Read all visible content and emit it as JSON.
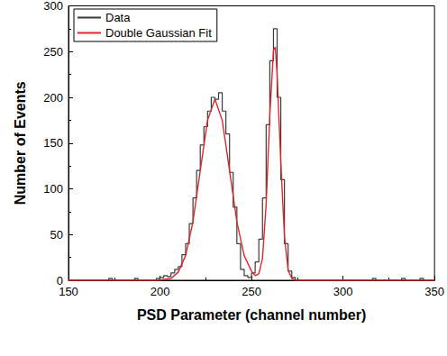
{
  "chart_data": {
    "type": "line",
    "x_label": "PSD Parameter (channel number)",
    "y_label": "Number of Events",
    "xlim": [
      150,
      350
    ],
    "xticks": [
      150,
      200,
      250,
      300,
      350
    ],
    "ylim": [
      0,
      300
    ],
    "yticks": [
      0,
      50,
      100,
      150,
      200,
      250,
      300
    ],
    "grid": false,
    "legend": "upper left",
    "series": [
      {
        "name": "Data",
        "color": "#3a3a3a",
        "line_style": "step",
        "marker": "none",
        "x": [
          150,
          170,
          172,
          174,
          184,
          186,
          188,
          196,
          198,
          200,
          202,
          204,
          206,
          208,
          210,
          212,
          214,
          216,
          218,
          220,
          222,
          224,
          226,
          228,
          230,
          232,
          234,
          236,
          238,
          240,
          242,
          244,
          246,
          248,
          250,
          252,
          254,
          256,
          258,
          260,
          262,
          264,
          266,
          268,
          270,
          272,
          274,
          314,
          316,
          318,
          330,
          332,
          334,
          340,
          342,
          344,
          350
        ],
        "values": [
          0,
          0,
          2,
          0,
          0,
          2,
          0,
          0,
          2,
          3,
          5,
          4,
          8,
          12,
          15,
          28,
          40,
          62,
          90,
          120,
          148,
          168,
          185,
          200,
          198,
          205,
          185,
          160,
          118,
          80,
          40,
          12,
          5,
          3,
          8,
          20,
          45,
          90,
          170,
          240,
          275,
          200,
          110,
          40,
          10,
          3,
          0,
          0,
          2,
          0,
          0,
          2,
          0,
          0,
          2,
          0,
          0
        ]
      },
      {
        "name": "Double Gaussian Fit",
        "color": "#e0262b",
        "line_style": "solid",
        "marker": "none",
        "x": [
          150,
          200,
          202,
          206,
          210,
          214,
          218,
          222,
          226,
          230,
          234,
          238,
          242,
          246,
          250,
          252,
          254,
          256,
          258,
          260,
          262,
          263,
          264,
          266,
          268,
          270,
          272,
          274,
          350
        ],
        "values": [
          0,
          0,
          1,
          2,
          9,
          27,
          64,
          120,
          175,
          198,
          175,
          120,
          64,
          27,
          10,
          5,
          7,
          24,
          83,
          180,
          251,
          255,
          225,
          129,
          48,
          11,
          2,
          0,
          0
        ]
      }
    ]
  }
}
